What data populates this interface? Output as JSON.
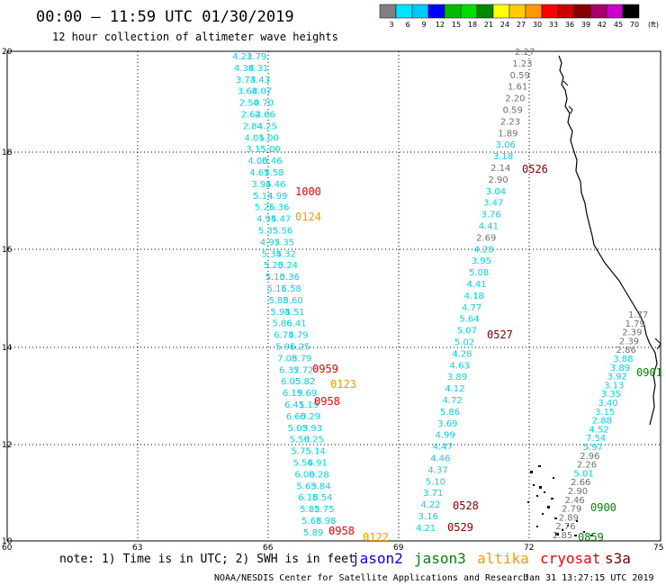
{
  "title": "00:00 – 11:59 UTC 01/30/2019",
  "subtitle": "12 hour collection of altimeter wave heights",
  "color_scale": {
    "labels": [
      "3",
      "6",
      "9",
      "12",
      "15",
      "18",
      "21",
      "24",
      "27",
      "30",
      "33",
      "36",
      "39",
      "42",
      "45",
      "70"
    ],
    "unit": "(ft)",
    "colors": [
      "#808080",
      "#00e5ff",
      "#00c8ff",
      "#0000ff",
      "#00bb00",
      "#00dd00",
      "#008800",
      "#ffff00",
      "#ffcc00",
      "#ff9900",
      "#ff0000",
      "#cc0000",
      "#880000",
      "#aa0066",
      "#cc00cc",
      "#000000"
    ]
  },
  "axes": {
    "x_ticks": [
      "60",
      "63",
      "66",
      "69",
      "72",
      "75"
    ],
    "y_ticks": [
      "20",
      "18",
      "16",
      "14",
      "12",
      "10"
    ]
  },
  "track_times": [
    {
      "text": "1000",
      "color": "#ff0000"
    },
    {
      "text": "0124",
      "color": "#ff9900"
    },
    {
      "text": "0526",
      "color": "#880000"
    },
    {
      "text": "0527",
      "color": "#880000"
    },
    {
      "text": "0959",
      "color": "#ff0000"
    },
    {
      "text": "0123",
      "color": "#ff9900"
    },
    {
      "text": "0958",
      "color": "#ff0000"
    },
    {
      "text": "0901",
      "color": "#008800"
    },
    {
      "text": "0528",
      "color": "#880000"
    },
    {
      "text": "0900",
      "color": "#008800"
    },
    {
      "text": "0529",
      "color": "#880000"
    },
    {
      "text": "0958",
      "color": "#ff0000"
    },
    {
      "text": "0122",
      "color": "#ff9900"
    },
    {
      "text": "0859",
      "color": "#008800"
    }
  ],
  "values": {
    "left_track": [
      "4.21",
      "3.79",
      "4.38",
      "4.31",
      "3.73",
      "4.43",
      "3.68",
      "4.07",
      "2.50",
      "4.70",
      "2.62",
      "4.66",
      "2.84",
      "4.25",
      "4.01",
      "5.00",
      "3.15",
      "5.00",
      "4.00",
      "5.46",
      "4.61",
      "5.58",
      "3.94",
      "5.46",
      "5.14",
      "4.99",
      "5.26",
      "5.36",
      "4.94",
      "5.47",
      "5.35",
      "5.56",
      "4.97",
      "5.35",
      "5.34",
      "5.32",
      "5.20",
      "5.24",
      "5.10",
      "5.36",
      "5.16",
      "5.58",
      "5.88",
      "5.60",
      "5.94",
      "5.51",
      "5.86",
      "6.41",
      "6.74",
      "5.79",
      "5.96",
      "5.25",
      "7.08",
      "5.79",
      "6.37",
      "5.72",
      "6.05",
      "5.82",
      "6.19",
      "5.69",
      "6.41",
      "5.19",
      "6.60",
      "5.29",
      "5.03",
      "5.93",
      "5.50",
      "6.25",
      "5.75",
      "5.14",
      "5.56",
      "4.91",
      "6.00",
      "5.28",
      "5.63",
      "5.84",
      "6.18",
      "5.54",
      "5.82",
      "5.75",
      "5.68",
      "5.98",
      "5.89"
    ],
    "middle_track": [
      "2.27",
      "1.23",
      "0.59",
      "1.61",
      "2.20",
      "0.59",
      "2.23",
      "1.89",
      "3.06",
      "3.18",
      "2.14",
      "2.90",
      "3.04",
      "3.47",
      "3.76",
      "4.41",
      "2.69",
      "4.28",
      "3.95",
      "5.08",
      "4.41",
      "4.18",
      "4.77",
      "5.64",
      "5.07",
      "5.02",
      "4.28",
      "4.63",
      "3.89",
      "4.12",
      "4.72",
      "5.86",
      "3.69",
      "4.99",
      "4.47",
      "4.46",
      "4.37",
      "5.10",
      "3.71",
      "4.22",
      "3.16",
      "4.21"
    ],
    "right_track": [
      "1.77",
      "1.79",
      "2.39",
      "2.39",
      "2.86",
      "3.88",
      "3.89",
      "3.92",
      "3.13",
      "3.35",
      "3.40",
      "3.15",
      "2.88",
      "4.52",
      "7.54",
      "5.97",
      "2.96",
      "2.26",
      "5.01",
      "2.66",
      "2.90",
      "2.46",
      "2.79",
      "2.89",
      "2.76",
      "2.85"
    ]
  },
  "note": "note: 1) Time is in UTC; 2) SWH is in feet",
  "legend": [
    {
      "label": "jason2",
      "color": "#0000ff"
    },
    {
      "label": "jason3",
      "color": "#008800"
    },
    {
      "label": "altika",
      "color": "#ff9900"
    },
    {
      "label": "cryosat",
      "color": "#ff0000"
    },
    {
      "label": "s3a",
      "color": "#880000"
    }
  ],
  "credit_left": "NOAA/NESDIS Center for Satellite Applications and Research",
  "credit_right": "Jan 31 13:27:15 UTC 2019",
  "colors": {
    "cyan": "#00d8e8",
    "gray": "#707070",
    "grid": "#000000"
  }
}
